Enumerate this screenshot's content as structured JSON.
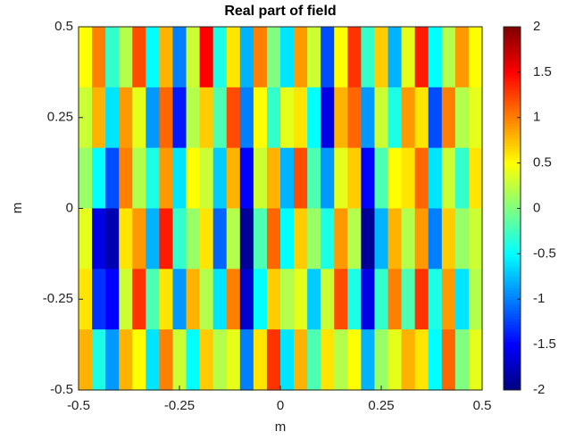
{
  "chart_data": {
    "type": "heatmap",
    "title": "Real part of field",
    "xlabel": "m",
    "ylabel": "m",
    "xlim": [
      -0.5,
      0.5
    ],
    "ylim": [
      -0.5,
      0.5
    ],
    "xticks": [
      -0.5,
      -0.25,
      0,
      0.25,
      0.5
    ],
    "yticks": [
      -0.5,
      -0.25,
      0,
      0.25,
      0.5
    ],
    "colormap": "jet",
    "colorbar": {
      "lim": [
        -2,
        2
      ],
      "ticks": [
        -2,
        -1.5,
        -1,
        -0.5,
        0,
        0.5,
        1,
        1.5,
        2
      ]
    },
    "z": [
      [
        0.5,
        1.0,
        -0.3,
        0.2,
        1.2,
        -0.5,
        0.8,
        -1.0,
        0.3,
        1.5,
        -0.4,
        0.6,
        -0.8,
        1.0,
        0.0,
        -0.6,
        0.9,
        0.3,
        -1.2,
        0.5,
        1.3,
        -0.3,
        0.7,
        -0.8,
        0.4,
        1.4,
        -0.5,
        0.2,
        0.9,
        0.5
      ],
      [
        0.3,
        0.8,
        -0.6,
        0.9,
        0.4,
        -0.9,
        1.1,
        -1.4,
        0.2,
        0.7,
        -0.2,
        1.2,
        -1.0,
        0.5,
        -0.3,
        0.4,
        0.6,
        -0.5,
        -1.6,
        0.8,
        1.1,
        -0.9,
        0.3,
        -0.4,
        0.9,
        0.6,
        -1.2,
        1.0,
        0.2,
        0.4
      ],
      [
        0.1,
        -0.5,
        -1.2,
        1.0,
        0.2,
        -0.4,
        0.9,
        -0.6,
        0.5,
        0.3,
        -0.7,
        0.8,
        -1.5,
        0.3,
        0.8,
        -0.8,
        1.2,
        -0.2,
        -0.9,
        0.4,
        0.7,
        -1.5,
        -0.2,
        0.5,
        0.6,
        1.1,
        -0.6,
        0.3,
        -0.3,
        0.6
      ],
      [
        0.4,
        -1.6,
        -1.8,
        0.6,
        0.9,
        -0.8,
        1.4,
        -0.3,
        0.1,
        0.6,
        -1.1,
        0.2,
        -1.9,
        -0.2,
        1.1,
        -0.5,
        0.7,
        0.1,
        -0.4,
        0.9,
        0.2,
        -1.9,
        -0.8,
        0.8,
        0.2,
        0.9,
        -1.0,
        0.7,
        0.1,
        0.3
      ],
      [
        0.6,
        -1.3,
        -1.5,
        0.3,
        1.3,
        -0.2,
        0.6,
        -0.9,
        0.8,
        0.2,
        -0.6,
        1.0,
        -1.7,
        -0.5,
        0.7,
        0.2,
        0.4,
        -0.7,
        0.3,
        1.2,
        -0.4,
        -1.6,
        -0.3,
        1.0,
        -0.2,
        1.3,
        -0.4,
        0.9,
        -0.6,
        0.2
      ],
      [
        0.8,
        -0.4,
        -0.9,
        0.8,
        0.5,
        -0.6,
        1.0,
        0.3,
        -0.5,
        0.7,
        0.2,
        0.4,
        -1.0,
        0.6,
        1.3,
        -0.6,
        0.8,
        -0.2,
        0.6,
        0.2,
        0.5,
        -0.8,
        0.1,
        0.4,
        0.8,
        0.6,
        -0.5,
        1.1,
        0.0,
        0.4
      ]
    ]
  }
}
